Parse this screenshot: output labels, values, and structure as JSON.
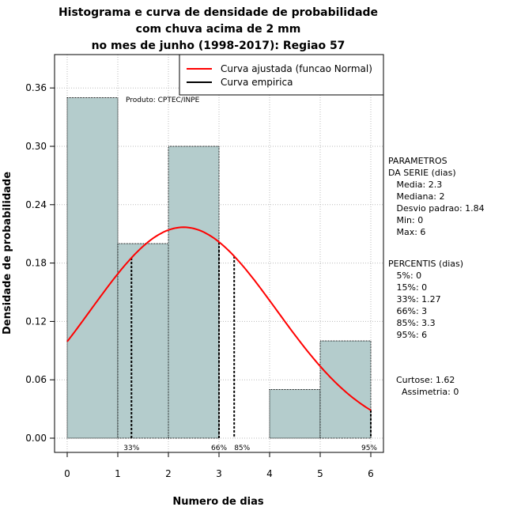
{
  "chart_data": {
    "type": "bar",
    "title": [
      "Histograma e curva de densidade de probabilidade",
      "com chuva acima de 2 mm",
      "no mes de junho (1998-2017): Regiao 57"
    ],
    "xlabel": "Numero de dias",
    "ylabel": "Densidade de probabilidade",
    "xlim": [
      -0.25,
      6.25
    ],
    "ylim": [
      0,
      0.39
    ],
    "x_ticks": [
      0,
      1,
      2,
      3,
      4,
      5,
      6
    ],
    "y_ticks": [
      "0.00",
      "0.06",
      "0.12",
      "0.18",
      "0.24",
      "0.30",
      "0.36"
    ],
    "grid": true,
    "legend_position": "top-right",
    "source_note": "Produto: CPTEC/INPE",
    "bars": [
      {
        "x0": 0,
        "x1": 1,
        "value": 0.35
      },
      {
        "x0": 1,
        "x1": 2,
        "value": 0.2
      },
      {
        "x0": 2,
        "x1": 3,
        "value": 0.3
      },
      {
        "x0": 3,
        "x1": 4,
        "value": 0.0
      },
      {
        "x0": 4,
        "x1": 5,
        "value": 0.05
      },
      {
        "x0": 5,
        "x1": 6,
        "value": 0.1
      }
    ],
    "series": [
      {
        "name": "Curva ajustada (funcao Normal)",
        "color": "#ff0000",
        "mean": 2.3,
        "sd": 1.84,
        "x_range": [
          0,
          6
        ]
      },
      {
        "name": "Curva empirica",
        "color": "#000000"
      }
    ],
    "percentile_lines": [
      {
        "label": "33%",
        "x": 1.27
      },
      {
        "label": "66%",
        "x": 3
      },
      {
        "label": "85%",
        "x": 3.3
      },
      {
        "label": "95%",
        "x": 6
      }
    ],
    "colors": {
      "bar_fill": "#b4cccc",
      "curve": "#ff0000"
    }
  },
  "side_panel": {
    "parametros": [
      "PARAMETROS",
      "DA SERIE (dias)",
      "   Media: 2.3",
      "   Mediana: 2",
      "   Desvio padrao: 1.84",
      "   Min: 0",
      "   Max: 6"
    ],
    "percentis": [
      "PERCENTIS (dias)",
      "   5%: 0",
      "   15%: 0",
      "   33%: 1.27",
      "   66%: 3",
      "   85%: 3.3",
      "   95%: 6"
    ],
    "shape": [
      "Curtose: 1.62",
      "  Assimetria: 0"
    ]
  }
}
